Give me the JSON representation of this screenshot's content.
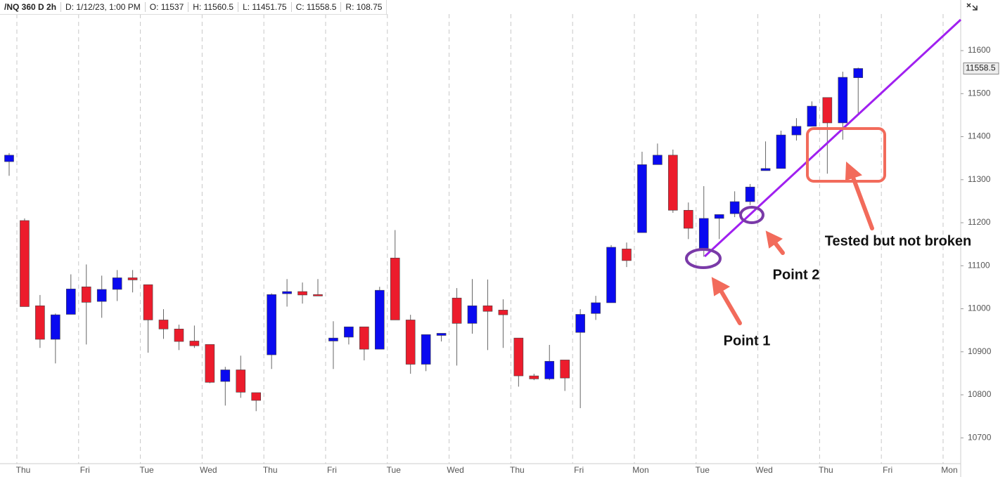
{
  "header": {
    "symbol": "/NQ 360 D 2h",
    "items": [
      "D: 1/12/23, 1:00 PM",
      "O: 11537",
      "H: 11560.5",
      "L: 11451.75",
      "C: 11558.5",
      "R: 108.75"
    ]
  },
  "chart_data": {
    "type": "candlestick",
    "categories": [
      null,
      null,
      null,
      null,
      null,
      null,
      null,
      null,
      null,
      null,
      null,
      null,
      null,
      null,
      null,
      null,
      null,
      null,
      null,
      null,
      null,
      null,
      null,
      null,
      null,
      null,
      null,
      null,
      null,
      null,
      null,
      null,
      null,
      null,
      null,
      null,
      null,
      null,
      null,
      null,
      null,
      null,
      null,
      null,
      null,
      null,
      null,
      null,
      null,
      null,
      null,
      null,
      null,
      null,
      null,
      null
    ],
    "day_labels": [
      "Thu",
      "Fri",
      "Tue",
      "Wed",
      "Thu",
      "Fri",
      "Tue",
      "Wed",
      "Thu",
      "Fri",
      "Mon",
      "Tue",
      "Wed",
      "Thu",
      "Fri",
      "Mon"
    ],
    "open": [
      11342,
      11205,
      11007,
      10929,
      10987,
      11051,
      11017,
      11045,
      11072,
      11056,
      10974,
      10953,
      10925,
      10917,
      10831,
      10858,
      10805,
      10893,
      11035,
      11040,
      11033,
      10925,
      10934,
      10958,
      10906,
      11118,
      10974,
      10871,
      10938,
      11025,
      10966,
      11007,
      10997,
      10932,
      10844,
      10837,
      10881,
      10945,
      10989,
      11014,
      11139,
      11177,
      11335,
      11357,
      11229,
      11141,
      11210,
      11221,
      11249,
      11321,
      11326,
      11404,
      11424,
      11491,
      11432,
      11537
    ],
    "high": [
      11362,
      11210,
      11032,
      10989,
      11080,
      11103,
      11077,
      11090,
      11090,
      11056,
      10999,
      10963,
      10961,
      10917,
      10865,
      10891,
      10805,
      11036,
      11069,
      11061,
      11069,
      10971,
      10958,
      10958,
      11051,
      11183,
      10986,
      10940,
      10943,
      11048,
      11069,
      11068,
      11022,
      10932,
      10849,
      10916,
      10881,
      10999,
      11030,
      11148,
      11154,
      11365,
      11384,
      11370,
      11247,
      11285,
      11219,
      11273,
      11290,
      11389,
      11414,
      11443,
      11482,
      11491,
      11551,
      11560.5
    ],
    "low": [
      11309,
      11005,
      10909,
      10873,
      10987,
      10917,
      10979,
      11018,
      11038,
      10898,
      10930,
      10904,
      10909,
      10827,
      10775,
      10793,
      10762,
      10860,
      11005,
      11012,
      11031,
      10860,
      10917,
      10880,
      10906,
      10974,
      10849,
      10855,
      10924,
      10868,
      10942,
      10904,
      10909,
      10819,
      10834,
      10834,
      10809,
      10769,
      10974,
      11014,
      11097,
      11177,
      11335,
      11223,
      11162,
      11121,
      11162,
      11213,
      11241,
      11321,
      11326,
      11391,
      11424,
      11314,
      11393,
      11451.75
    ],
    "close": [
      11357,
      11005,
      10929,
      10986,
      11046,
      11015,
      11045,
      11072,
      11067,
      10974,
      10953,
      10924,
      10914,
      10829,
      10858,
      10806,
      10787,
      11033,
      11040,
      11032,
      11031,
      10932,
      10958,
      10906,
      11043,
      10974,
      10871,
      10940,
      10943,
      10966,
      11007,
      10994,
      10986,
      10844,
      10837,
      10878,
      10839,
      10987,
      11014,
      11143,
      11112,
      11335,
      11357,
      11229,
      11187,
      11210,
      11219,
      11249,
      11283,
      11326,
      11404,
      11424,
      11471,
      11432,
      11538,
      11558.5
    ],
    "up_color": "#0a0af0",
    "down_color": "#ec1c2c",
    "ylim": [
      10640,
      11685
    ],
    "yticks": [
      10700,
      10800,
      10900,
      11000,
      11100,
      11200,
      11300,
      11400,
      11500,
      11600
    ],
    "last_price": 11558.5,
    "annotations": [
      "Point 1",
      "Point 2",
      "Tested but not broken"
    ]
  }
}
